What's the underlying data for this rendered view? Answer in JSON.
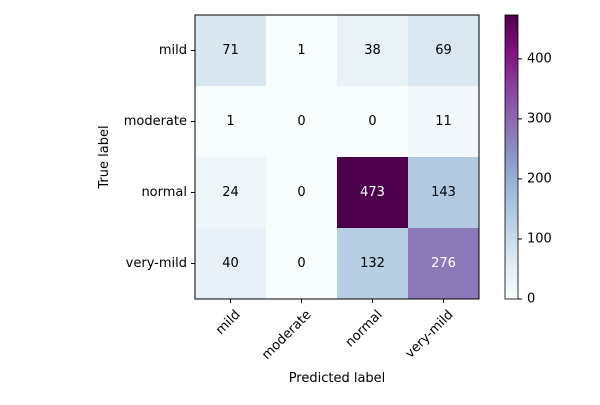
{
  "chart_data": {
    "type": "heatmap",
    "title": "",
    "xlabel": "Predicted label",
    "ylabel": "True label",
    "x_categories": [
      "mild",
      "moderate",
      "normal",
      "very-mild"
    ],
    "y_categories": [
      "mild",
      "moderate",
      "normal",
      "very-mild"
    ],
    "values": [
      [
        71,
        1,
        38,
        69
      ],
      [
        1,
        0,
        0,
        11
      ],
      [
        24,
        0,
        473,
        143
      ],
      [
        40,
        0,
        132,
        276
      ]
    ],
    "colormap": "BuPu",
    "vmin": 0,
    "vmax": 473,
    "colorbar_ticks": [
      0,
      100,
      200,
      300,
      400
    ],
    "text_color_light": "#ffffff",
    "text_color_dark": "#000000",
    "x_tick_rotation": 45
  }
}
